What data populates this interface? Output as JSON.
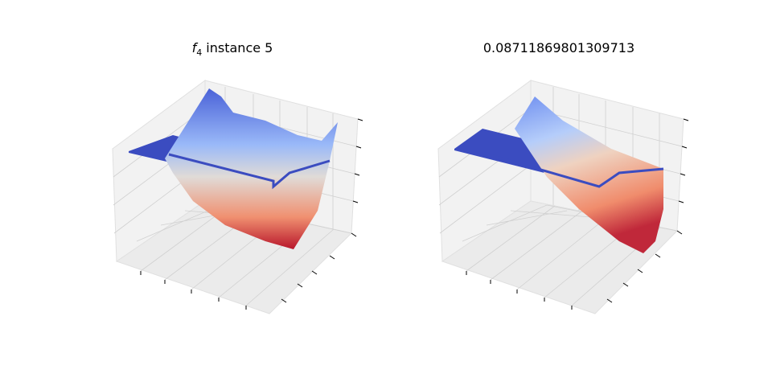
{
  "chart_data": [
    {
      "type": "surface",
      "title": {
        "symbol": "f",
        "subscript": "4",
        "text": "instance 5"
      }
    },
    {
      "type": "surface",
      "title": "0.08711869801309713"
    }
  ]
}
